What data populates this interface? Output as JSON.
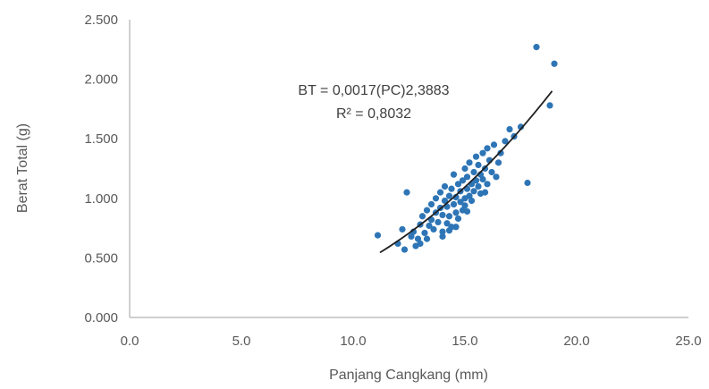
{
  "chart_data": {
    "type": "scatter",
    "xlabel": "Panjang Cangkang (mm)",
    "ylabel": "Berat Total (g)",
    "xlim": [
      0,
      25
    ],
    "ylim": [
      0,
      2.5
    ],
    "x_ticks": [
      0,
      5,
      10,
      15,
      20,
      25
    ],
    "y_ticks": [
      0,
      0.5,
      1,
      1.5,
      2,
      2.5
    ],
    "x_tick_labels": [
      "0.0",
      "5.0",
      "10.0",
      "15.0",
      "20.0",
      "25.0"
    ],
    "y_tick_labels": [
      "0.000",
      "0.500",
      "1.000",
      "1.500",
      "2.000",
      "2.500"
    ],
    "grid": false,
    "legend": "none",
    "marker_color": "#2e75b6",
    "trendline_color": "#1f1f1f",
    "annotation": {
      "equation": "BT = 0,0017(PC)2,3883",
      "r_squared": "R² = 0,8032"
    },
    "trendline": {
      "type": "power",
      "coefficient": 0.0017,
      "exponent": 2.3883,
      "x_range": [
        11.2,
        18.9
      ]
    },
    "series": [
      {
        "points": [
          [
            11.1,
            0.69
          ],
          [
            12.0,
            0.62
          ],
          [
            12.2,
            0.74
          ],
          [
            12.3,
            0.57
          ],
          [
            12.4,
            1.05
          ],
          [
            12.6,
            0.68
          ],
          [
            12.7,
            0.72
          ],
          [
            12.9,
            0.66
          ],
          [
            13.0,
            0.78
          ],
          [
            13.0,
            0.62
          ],
          [
            13.1,
            0.85
          ],
          [
            13.2,
            0.71
          ],
          [
            13.3,
            0.9
          ],
          [
            13.4,
            0.77
          ],
          [
            13.5,
            0.82
          ],
          [
            13.5,
            0.95
          ],
          [
            13.6,
            0.74
          ],
          [
            13.7,
            0.88
          ],
          [
            13.7,
            1.0
          ],
          [
            13.8,
            0.8
          ],
          [
            13.9,
            0.92
          ],
          [
            13.9,
            1.05
          ],
          [
            14.0,
            0.72
          ],
          [
            14.0,
            0.86
          ],
          [
            14.1,
            0.98
          ],
          [
            14.1,
            1.1
          ],
          [
            14.2,
            0.79
          ],
          [
            14.2,
            0.93
          ],
          [
            14.3,
            1.02
          ],
          [
            14.3,
            0.85
          ],
          [
            14.4,
            0.76
          ],
          [
            14.4,
            1.08
          ],
          [
            14.5,
            0.95
          ],
          [
            14.5,
            1.2
          ],
          [
            14.6,
            0.88
          ],
          [
            14.6,
            1.01
          ],
          [
            14.7,
            0.83
          ],
          [
            14.7,
            1.12
          ],
          [
            14.8,
            0.97
          ],
          [
            14.8,
            1.06
          ],
          [
            14.9,
            0.9
          ],
          [
            14.9,
            1.15
          ],
          [
            15.0,
            1.0
          ],
          [
            15.0,
            1.25
          ],
          [
            15.0,
            0.94
          ],
          [
            15.1,
            1.08
          ],
          [
            15.1,
            1.18
          ],
          [
            15.2,
            1.02
          ],
          [
            15.2,
            1.3
          ],
          [
            15.3,
            1.12
          ],
          [
            15.3,
            0.98
          ],
          [
            15.4,
            1.22
          ],
          [
            15.4,
            1.06
          ],
          [
            15.5,
            1.15
          ],
          [
            15.5,
            1.35
          ],
          [
            15.6,
            1.1
          ],
          [
            15.6,
            1.28
          ],
          [
            15.7,
            1.04
          ],
          [
            15.7,
            1.2
          ],
          [
            15.8,
            1.38
          ],
          [
            15.8,
            1.16
          ],
          [
            15.9,
            1.25
          ],
          [
            16.0,
            1.42
          ],
          [
            16.0,
            1.12
          ],
          [
            16.1,
            1.32
          ],
          [
            16.2,
            1.22
          ],
          [
            16.3,
            1.45
          ],
          [
            16.5,
            1.3
          ],
          [
            16.6,
            1.38
          ],
          [
            16.8,
            1.48
          ],
          [
            17.0,
            1.58
          ],
          [
            17.2,
            1.52
          ],
          [
            17.5,
            1.6
          ],
          [
            17.8,
            1.13
          ],
          [
            18.2,
            2.27
          ],
          [
            18.8,
            1.78
          ],
          [
            19.0,
            2.13
          ],
          [
            14.0,
            0.68
          ],
          [
            14.3,
            0.73
          ],
          [
            14.6,
            0.76
          ],
          [
            15.1,
            0.89
          ],
          [
            13.3,
            0.66
          ],
          [
            12.8,
            0.6
          ],
          [
            15.9,
            1.05
          ],
          [
            16.4,
            1.18
          ]
        ]
      }
    ]
  }
}
